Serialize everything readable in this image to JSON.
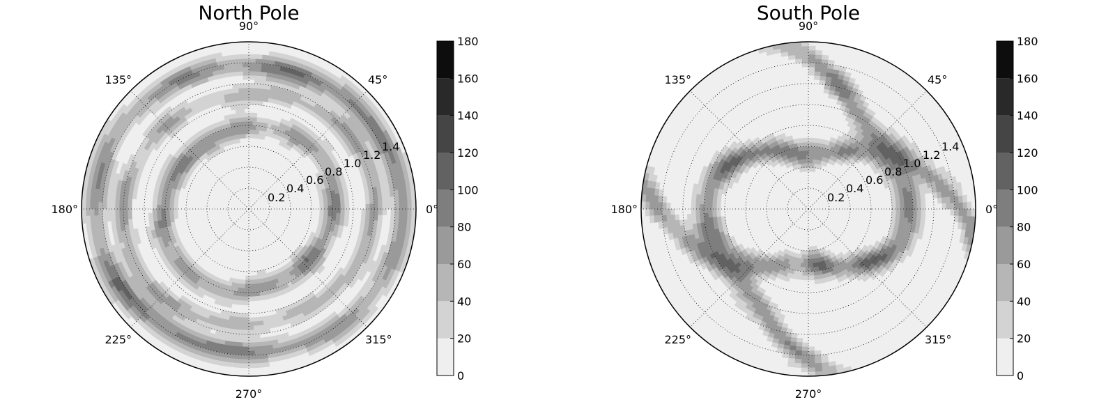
{
  "chart_data": [
    {
      "type": "heatmap",
      "projection": "polar",
      "title": "North Pole",
      "angle_tick_labels": [
        "0°",
        "45°",
        "90°",
        "135°",
        "180°",
        "225°",
        "270°",
        "315°"
      ],
      "radial_tick_labels": [
        "0.2",
        "0.4",
        "0.6",
        "0.8",
        "1.0",
        "1.2",
        "1.4"
      ],
      "radial_range": [
        0,
        1.6
      ],
      "grid": true,
      "colorbar": {
        "levels": [
          0,
          20,
          40,
          60,
          80,
          100,
          120,
          140,
          160,
          180
        ],
        "tick_labels": [
          "0",
          "20",
          "40",
          "60",
          "80",
          "100",
          "120",
          "140",
          "160",
          "180"
        ],
        "colors": [
          "#efefef",
          "#d3d3d3",
          "#b6b6b6",
          "#9a9a9a",
          "#7e7e7e",
          "#626262",
          "#454545",
          "#292929",
          "#0d0d0d"
        ]
      },
      "bands": [
        {
          "r": 0.8,
          "wobble": 0.05,
          "phase": 20,
          "peak": 95,
          "width": 0.11
        },
        {
          "r": 1.15,
          "wobble": 0.06,
          "phase": 60,
          "peak": 72,
          "width": 0.09
        },
        {
          "r": 1.42,
          "wobble": 0.05,
          "phase": 100,
          "peak": 102,
          "width": 0.11
        }
      ]
    },
    {
      "type": "heatmap",
      "projection": "polar",
      "title": "South Pole",
      "angle_tick_labels": [
        "0°",
        "45°",
        "90°",
        "135°",
        "180°",
        "225°",
        "270°",
        "315°"
      ],
      "radial_tick_labels": [
        "0.2",
        "0.4",
        "0.6",
        "0.8",
        "1.0",
        "1.2",
        "1.4"
      ],
      "radial_range": [
        0,
        1.6
      ],
      "grid": true,
      "colorbar": {
        "levels": [
          0,
          20,
          40,
          60,
          80,
          100,
          120,
          140,
          160,
          180
        ],
        "tick_labels": [
          "0",
          "20",
          "40",
          "60",
          "80",
          "100",
          "120",
          "140",
          "160",
          "180"
        ],
        "colors": [
          "#efefef",
          "#d3d3d3",
          "#b6b6b6",
          "#9a9a9a",
          "#7e7e7e",
          "#626262",
          "#454545",
          "#292929",
          "#0d0d0d"
        ]
      },
      "bands": [
        {
          "r": 0.75,
          "stretch": 0.3,
          "phase": 0,
          "peak": 108,
          "width": 0.13
        },
        {
          "r": 1.45,
          "stretch": 0.35,
          "phase": 90,
          "peak": 92,
          "width": 0.13
        }
      ]
    }
  ]
}
